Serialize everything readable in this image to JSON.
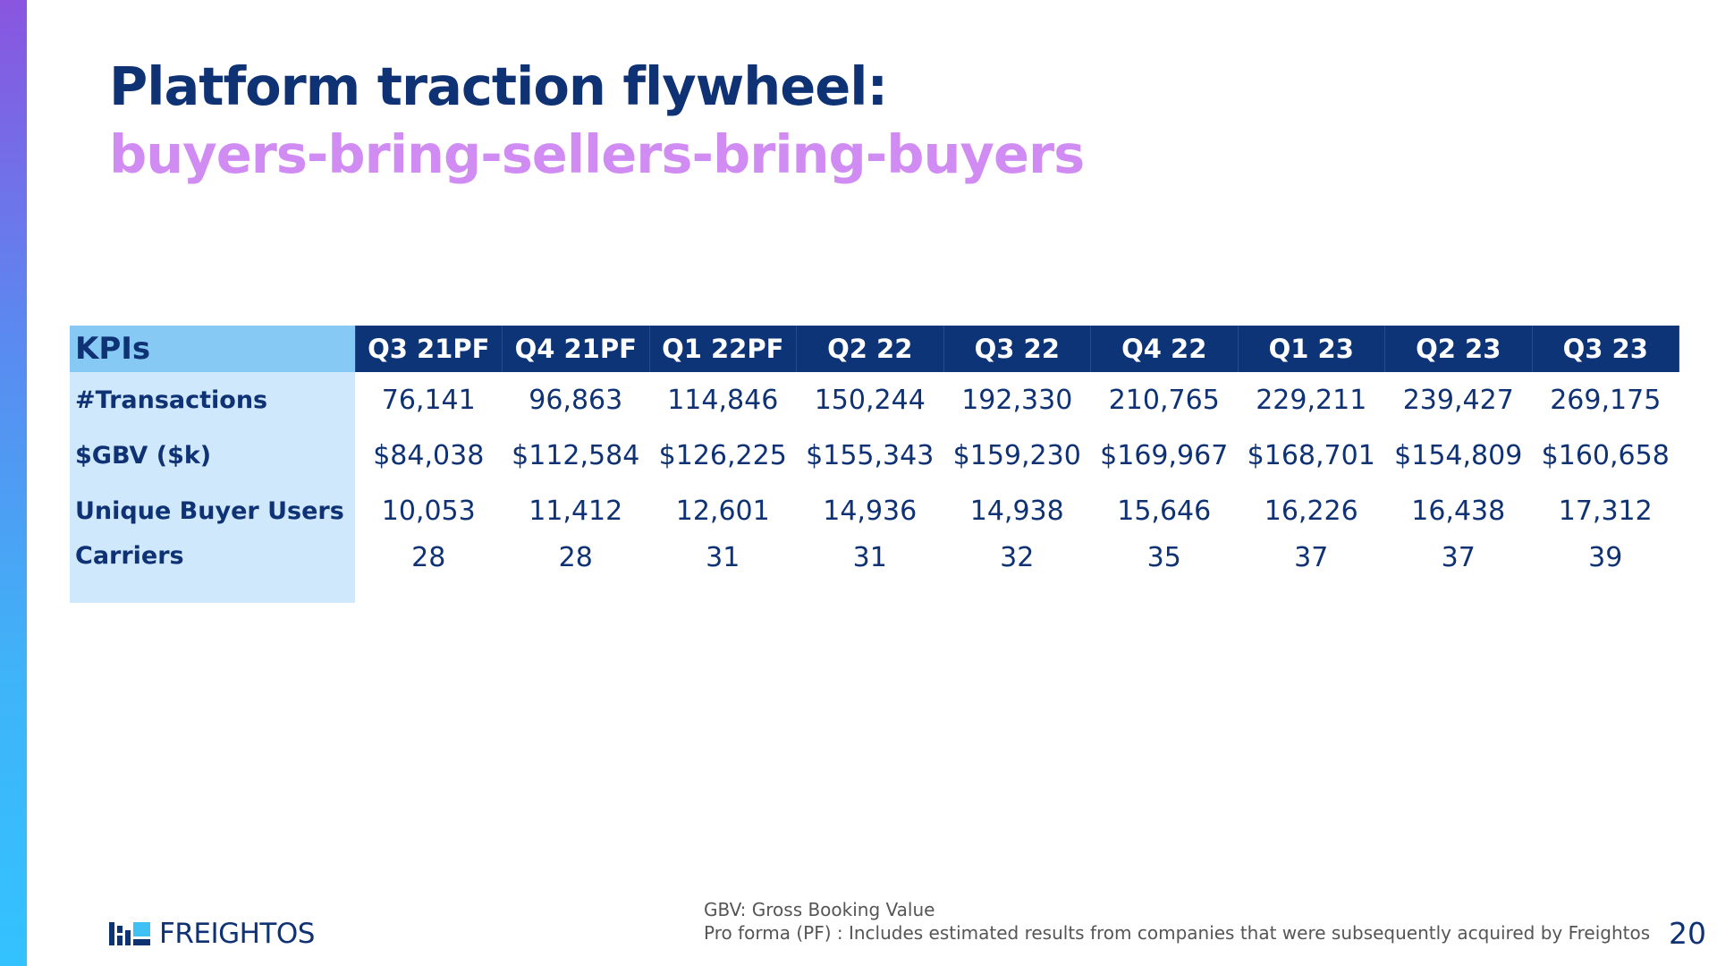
{
  "title": {
    "line1": "Platform traction flywheel:",
    "line2": "buyers-bring-sellers-bring-buyers"
  },
  "table": {
    "header_label": "KPIs",
    "columns": [
      "Q3 21PF",
      "Q4 21PF",
      "Q1 22PF",
      "Q2 22",
      "Q3 22",
      "Q4 22",
      "Q1 23",
      "Q2 23",
      "Q3 23"
    ],
    "rows": [
      {
        "label": "#Transactions",
        "values": [
          "76,141",
          "96,863",
          "114,846",
          "150,244",
          "192,330",
          "210,765",
          "229,211",
          "239,427",
          "269,175"
        ]
      },
      {
        "label": "$GBV ($k)",
        "values": [
          "$84,038",
          "$112,584",
          "$126,225",
          "$155,343",
          "$159,230",
          "$169,967",
          "$168,701",
          "$154,809",
          "$160,658"
        ]
      },
      {
        "label": "Unique Buyer Users",
        "values": [
          "10,053",
          "11,412",
          "12,601",
          "14,936",
          "14,938",
          "15,646",
          "16,226",
          "16,438",
          "17,312"
        ]
      },
      {
        "label": "Carriers",
        "values": [
          "28",
          "28",
          "31",
          "31",
          "32",
          "35",
          "37",
          "37",
          "39"
        ]
      }
    ]
  },
  "footer": {
    "logo_text": "FREIGHTOS",
    "footnote1": "GBV: Gross Booking Value",
    "footnote2": "Pro forma (PF) : Includes estimated results from companies that were subsequently acquired by Freightos",
    "page_number": "20"
  },
  "colors": {
    "navy": "#0f3275",
    "header_bg": "#0e3478",
    "kpi_header_bg": "#86c9f5",
    "label_bg": "#cfe8fb",
    "subtitle": "#d18cf3"
  }
}
